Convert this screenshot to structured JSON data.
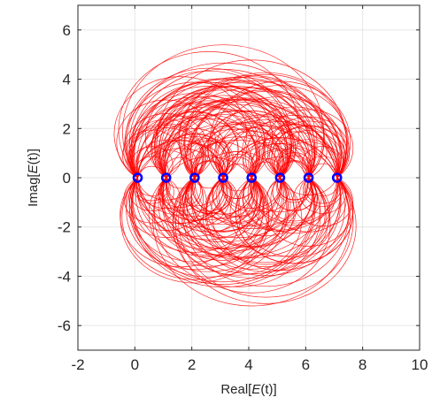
{
  "chart_data": {
    "type": "scatter",
    "title": "",
    "xlabel_main": "Real[",
    "xlabel_var": "E",
    "xlabel_tail": "(t)]",
    "ylabel_main": "Imag[",
    "ylabel_var": "E",
    "ylabel_tail": "(t)]",
    "xlim": [
      -2,
      10
    ],
    "ylim": [
      -7,
      7
    ],
    "xticks": [
      -2,
      0,
      2,
      4,
      6,
      8,
      10
    ],
    "yticks": [
      -6,
      -4,
      -2,
      0,
      2,
      4,
      6
    ],
    "xtick_labels": [
      "-2",
      "0",
      "2",
      "4",
      "6",
      "8",
      "10"
    ],
    "ytick_labels": [
      "-6",
      "-4",
      "-2",
      "0",
      "2",
      "4",
      "6"
    ],
    "grid": true,
    "box": true,
    "series": [
      {
        "kind": "points",
        "marker": "circle",
        "x": [
          0.1,
          1.1,
          2.1,
          3.1,
          4.1,
          5.1,
          6.1,
          7.1
        ],
        "y": [
          0,
          0,
          0,
          0,
          0,
          0,
          0,
          0
        ],
        "color": "#0000ff"
      },
      {
        "kind": "arc-trajectories",
        "color": "#ff0000",
        "description_endpoints": "each trajectory leaves one blue point along a circular arc in the upper or lower half-plane and returns to another blue point",
        "max_height_upper": 5.6,
        "max_height_lower": -5.8
      }
    ]
  }
}
